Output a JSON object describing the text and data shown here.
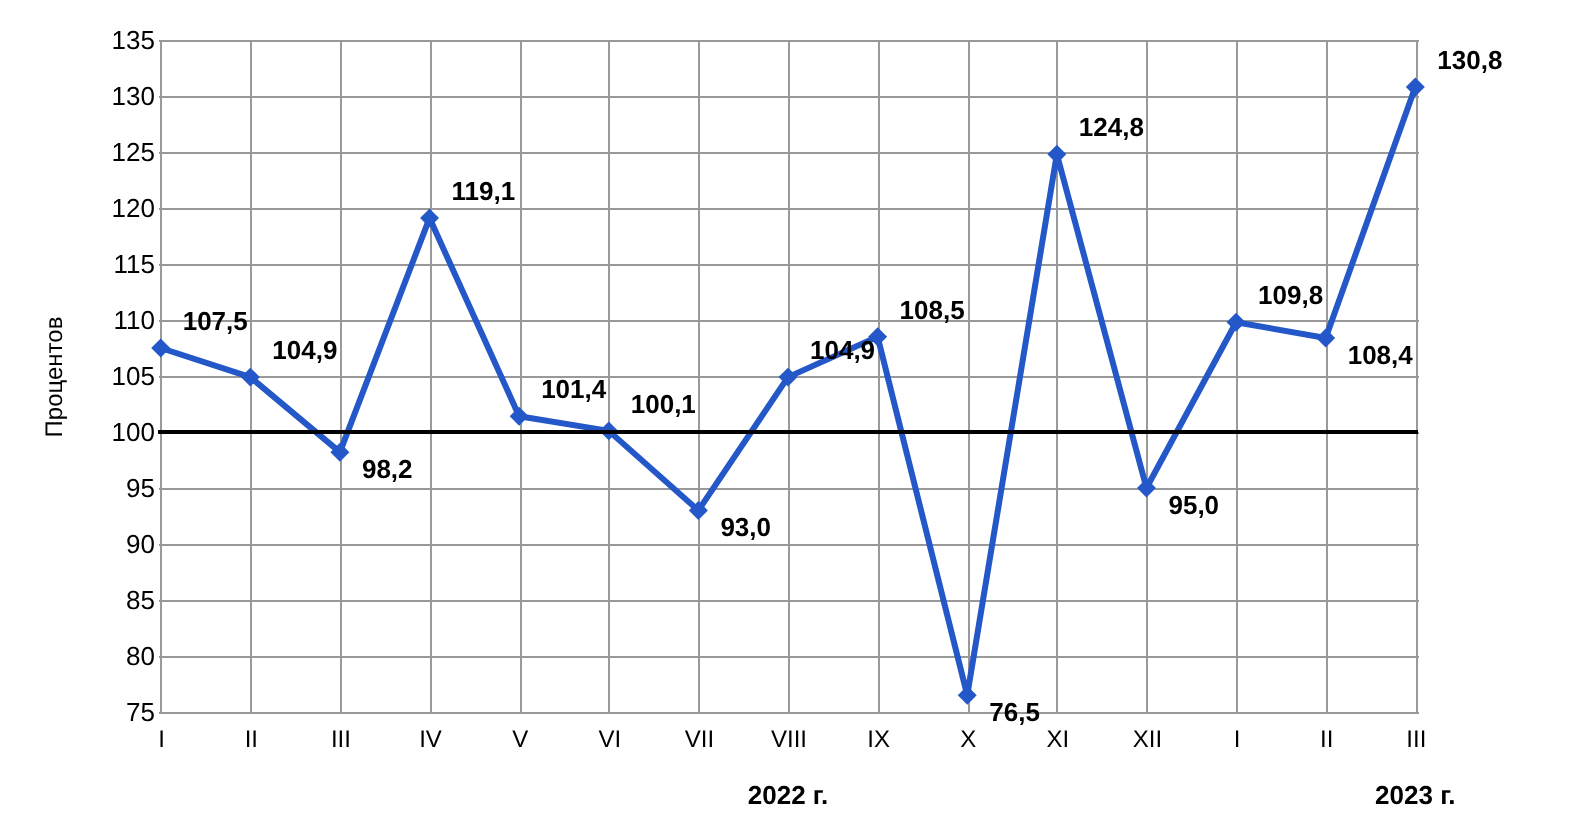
{
  "chart_data": {
    "type": "line",
    "ylabel": "Процентов",
    "categories": [
      "I",
      "II",
      "III",
      "IV",
      "V",
      "VI",
      "VII",
      "VIII",
      "IX",
      "X",
      "XI",
      "XII",
      "I",
      "II",
      "III"
    ],
    "series": [
      {
        "color": "#2457c8",
        "values": [
          107.5,
          104.9,
          98.2,
          119.1,
          101.4,
          100.1,
          93.0,
          104.9,
          108.5,
          76.5,
          124.8,
          95.0,
          109.8,
          108.4,
          130.8
        ],
        "value_labels": [
          "107,5",
          "104,9",
          "98,2",
          "119,1",
          "101,4",
          "100,1",
          "93,0",
          "104,9",
          "108,5",
          "76,5",
          "124,8",
          "95,0",
          "109,8",
          "108,4",
          "130,8"
        ]
      }
    ],
    "ylim": [
      75,
      135
    ],
    "yticks": [
      75,
      80,
      85,
      90,
      95,
      100,
      105,
      110,
      115,
      120,
      125,
      130,
      135
    ],
    "grid": true,
    "marker": "diamond",
    "data_labels": true,
    "ref_lines": [
      {
        "axis": "y",
        "value": 100,
        "color": "#000000"
      }
    ],
    "annotations": [
      "2022 г.",
      "2023 г."
    ]
  }
}
